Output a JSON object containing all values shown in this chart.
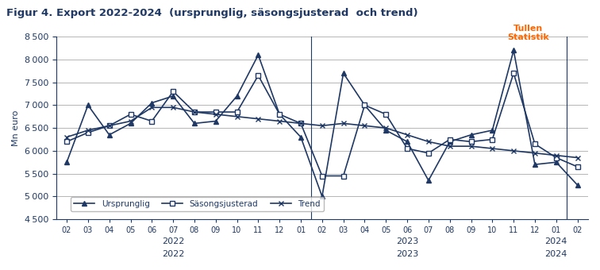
{
  "title": "Figur 4. Export 2022-2024  (ursprunglig, säsongsjusterad  och trend)",
  "watermark": "Tullen\nStatistik",
  "ylabel": "Mn euro",
  "ylim": [
    4500,
    8500
  ],
  "yticks": [
    4500,
    5000,
    5500,
    6000,
    6500,
    7000,
    7500,
    8000,
    8500
  ],
  "x_labels": [
    "02",
    "03",
    "04",
    "05",
    "06",
    "07",
    "08",
    "09",
    "10",
    "11",
    "12",
    "01",
    "02",
    "03",
    "04",
    "05",
    "06",
    "07",
    "08",
    "09",
    "10",
    "11",
    "12",
    "01",
    "02"
  ],
  "year_labels": [
    [
      "2022",
      5
    ],
    [
      "2023",
      16
    ],
    [
      "2024",
      23
    ]
  ],
  "ursprunglig": [
    5750,
    7000,
    6350,
    6600,
    7050,
    7200,
    6600,
    6650,
    7200,
    8100,
    6800,
    6300,
    5000,
    7700,
    7000,
    6450,
    6200,
    5350,
    6200,
    6350,
    6450,
    8200,
    5700,
    5750,
    5250
  ],
  "sasongsjusterad": [
    6200,
    6400,
    6550,
    6800,
    6650,
    7300,
    6850,
    6850,
    6850,
    7650,
    6800,
    6600,
    5450,
    5450,
    7000,
    6800,
    6050,
    5950,
    6250,
    6200,
    6250,
    7700,
    6150,
    5850,
    5650
  ],
  "trend": [
    6300,
    6450,
    6550,
    6650,
    6950,
    6950,
    6850,
    6800,
    6750,
    6700,
    6650,
    6600,
    6550,
    6600,
    6550,
    6500,
    6350,
    6200,
    6100,
    6100,
    6050,
    6000,
    5950,
    5900,
    5850
  ],
  "color_main": "#1F3864",
  "color_watermark": "#FF6600",
  "line_color": "#1F3864"
}
